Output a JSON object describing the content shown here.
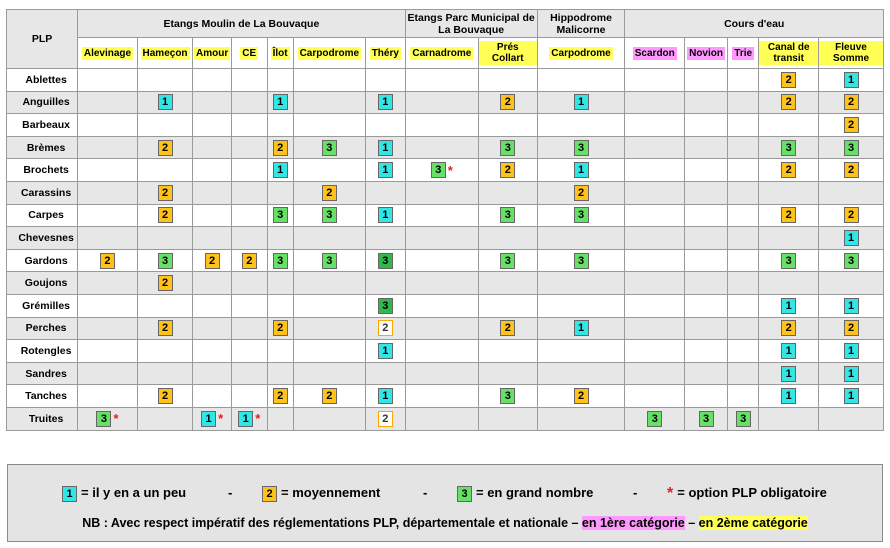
{
  "corner_label": "PLP",
  "groups": [
    {
      "label": "Etangs Moulin de La Bouvaque",
      "span": 7
    },
    {
      "label": "Etangs Parc Municipal de La Bouvaque",
      "span": 2
    },
    {
      "label": "Hippodrome Malicorne",
      "span": 1
    },
    {
      "label": "Cours d'eau",
      "span": 5
    }
  ],
  "columns": [
    {
      "label": "Alevinage",
      "style": "yellow"
    },
    {
      "label": "Hameçon",
      "style": "yellow"
    },
    {
      "label": "Amour",
      "style": "yellow"
    },
    {
      "label": "CE",
      "style": "yellow"
    },
    {
      "label": "Îlot",
      "style": "yellow"
    },
    {
      "label": "Carpodrome",
      "style": "yellow"
    },
    {
      "label": "Théry",
      "style": "yellow"
    },
    {
      "label": "Carnadrome",
      "style": "yellow"
    },
    {
      "label": "Prés Collart",
      "style": "yellow"
    },
    {
      "label": "Carpodrome",
      "style": "yellow"
    },
    {
      "label": "Scardon",
      "style": "pink"
    },
    {
      "label": "Novion",
      "style": "pink"
    },
    {
      "label": "Trie",
      "style": "pink"
    },
    {
      "label": "Canal de transit",
      "style": "yellow"
    },
    {
      "label": "Fleuve Somme",
      "style": "yellow"
    }
  ],
  "rows": [
    {
      "name": "Ablettes",
      "cells": [
        "",
        "",
        "",
        "",
        "",
        "",
        "",
        "",
        "",
        "",
        "",
        "",
        "",
        "2",
        "1"
      ]
    },
    {
      "name": "Anguilles",
      "cells": [
        "",
        "1",
        "",
        "",
        "1",
        "",
        "1",
        "",
        "2",
        "1",
        "",
        "",
        "",
        "2",
        "2"
      ]
    },
    {
      "name": "Barbeaux",
      "cells": [
        "",
        "",
        "",
        "",
        "",
        "",
        "",
        "",
        "",
        "",
        "",
        "",
        "",
        "",
        "2"
      ]
    },
    {
      "name": "Brèmes",
      "cells": [
        "",
        "2",
        "",
        "",
        "2",
        "3",
        "1",
        "",
        "3",
        "3",
        "",
        "",
        "",
        "3",
        "3"
      ]
    },
    {
      "name": "Brochets",
      "cells": [
        "",
        "",
        "",
        "",
        "1",
        "",
        "1",
        "3*",
        "2",
        "1",
        "",
        "",
        "",
        "2",
        "2"
      ]
    },
    {
      "name": "Carassins",
      "cells": [
        "",
        "2",
        "",
        "",
        "",
        "2",
        "",
        "",
        "",
        "2",
        "",
        "",
        "",
        "",
        ""
      ]
    },
    {
      "name": "Carpes",
      "cells": [
        "",
        "2",
        "",
        "",
        "3",
        "3",
        "1",
        "",
        "3",
        "3",
        "",
        "",
        "",
        "2",
        "2"
      ]
    },
    {
      "name": "Chevesnes",
      "cells": [
        "",
        "",
        "",
        "",
        "",
        "",
        "",
        "",
        "",
        "",
        "",
        "",
        "",
        "",
        "1"
      ]
    },
    {
      "name": "Gardons",
      "cells": [
        "2",
        "3",
        "2",
        "2",
        "3",
        "3",
        "3d",
        "",
        "3",
        "3",
        "",
        "",
        "",
        "3",
        "3"
      ]
    },
    {
      "name": "Goujons",
      "cells": [
        "",
        "2",
        "",
        "",
        "",
        "",
        "",
        "",
        "",
        "",
        "",
        "",
        "",
        "",
        ""
      ]
    },
    {
      "name": "Grémilles",
      "cells": [
        "",
        "",
        "",
        "",
        "",
        "",
        "3d",
        "",
        "",
        "",
        "",
        "",
        "",
        "1",
        "1"
      ]
    },
    {
      "name": "Perches",
      "cells": [
        "",
        "2",
        "",
        "",
        "2",
        "",
        "2o",
        "",
        "2",
        "1",
        "",
        "",
        "",
        "2",
        "2"
      ]
    },
    {
      "name": "Rotengles",
      "cells": [
        "",
        "",
        "",
        "",
        "",
        "",
        "1",
        "",
        "",
        "",
        "",
        "",
        "",
        "1",
        "1"
      ]
    },
    {
      "name": "Sandres",
      "cells": [
        "",
        "",
        "",
        "",
        "",
        "",
        "",
        "",
        "",
        "",
        "",
        "",
        "",
        "1",
        "1"
      ]
    },
    {
      "name": "Tanches",
      "cells": [
        "",
        "2",
        "",
        "",
        "2",
        "2",
        "1",
        "",
        "3",
        "2",
        "",
        "",
        "",
        "1",
        "1"
      ]
    },
    {
      "name": "Truites",
      "cells": [
        "3*",
        "",
        "1*",
        "1*",
        "",
        "",
        "2o",
        "",
        "",
        "",
        "3",
        "3",
        "3",
        "",
        ""
      ]
    }
  ],
  "legend": {
    "items": [
      {
        "badge": "1",
        "text": "= il y en a un peu"
      },
      {
        "sep": "-"
      },
      {
        "badge": "2",
        "text": "= moyennement"
      },
      {
        "sep": "-"
      },
      {
        "badge": "3",
        "text": "= en grand nombre"
      },
      {
        "sep": "-"
      },
      {
        "star": "*",
        "text": "= option PLP obligatoire"
      }
    ],
    "note_prefix": "NB : Avec respect impératif des réglementations PLP, départementale et nationale – ",
    "note_cat1": "en 1ère catégorie",
    "note_mid": " – ",
    "note_cat2": "en 2ème catégorie"
  },
  "colors": {
    "level1": "#33e6e6",
    "level2": "#ffc21a",
    "level3": "#66e066",
    "level3_dark": "#2fb94a",
    "star": "#e02020",
    "cat1_highlight": "#ff99ff",
    "cat2_highlight": "#ffff55",
    "row_alt": "#e7e7e7"
  }
}
